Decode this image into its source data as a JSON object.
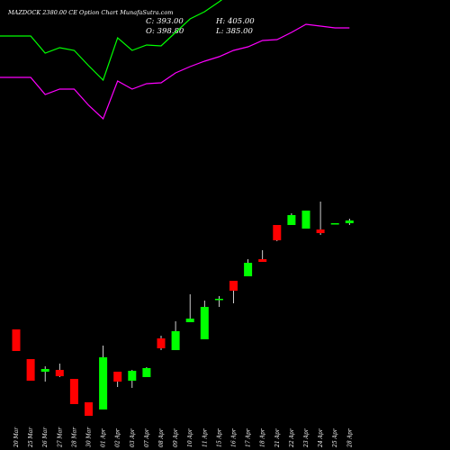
{
  "header": {
    "title": "MAZDOCK 2380.00  CE Option  Chart MunafaSutra.com",
    "close_text": "C: 393.00",
    "high_text": "H: 405.00",
    "open_text": "O: 398.80",
    "low_text": "L: 385.00"
  },
  "chart_data": {
    "type": "candlestick",
    "background": "#000000",
    "up_color": "#00ff00",
    "down_color": "#ff0000",
    "line_colors": [
      "#00ff00",
      "#ff00ff"
    ],
    "x": [
      "20 Mar",
      "25 Mar",
      "26 Mar",
      "27 Mar",
      "28 Mar",
      "30 Mar",
      "01 Apr",
      "02 Apr",
      "03 Apr",
      "07 Apr",
      "08 Apr",
      "09 Apr",
      "10 Apr",
      "11 Apr",
      "15 Apr",
      "16 Apr",
      "17 Apr",
      "18 Apr",
      "21 Apr",
      "22 Apr",
      "23 Apr",
      "24 Apr",
      "25 Apr",
      "28 Apr"
    ],
    "candles": [
      {
        "o": 134,
        "h": 134,
        "l": 110,
        "c": 110
      },
      {
        "o": 101,
        "h": 101,
        "l": 77,
        "c": 77
      },
      {
        "o": 87,
        "h": 93,
        "l": 76,
        "c": 90
      },
      {
        "o": 89,
        "h": 96,
        "l": 81,
        "c": 82
      },
      {
        "o": 79,
        "h": 79,
        "l": 51,
        "c": 51
      },
      {
        "o": 53,
        "h": 53,
        "l": 38,
        "c": 38
      },
      {
        "o": 45,
        "h": 116,
        "l": 45,
        "c": 103
      },
      {
        "o": 87,
        "h": 87,
        "l": 70,
        "c": 76
      },
      {
        "o": 77,
        "h": 89,
        "l": 69,
        "c": 88
      },
      {
        "o": 81,
        "h": 92,
        "l": 81,
        "c": 91
      },
      {
        "o": 124,
        "h": 127,
        "l": 111,
        "c": 113
      },
      {
        "o": 111,
        "h": 143,
        "l": 111,
        "c": 132
      },
      {
        "o": 142,
        "h": 173,
        "l": 142,
        "c": 146
      },
      {
        "o": 123,
        "h": 166,
        "l": 123,
        "c": 159
      },
      {
        "o": 168,
        "h": 171,
        "l": 159,
        "c": 168
      },
      {
        "o": 188,
        "h": 188,
        "l": 163,
        "c": 177
      },
      {
        "o": 193,
        "h": 212,
        "l": 193,
        "c": 208
      },
      {
        "o": 212,
        "h": 222,
        "l": 209,
        "c": 209
      },
      {
        "o": 250,
        "h": 250,
        "l": 232,
        "c": 233
      },
      {
        "o": 250,
        "h": 263,
        "l": 250,
        "c": 261
      },
      {
        "o": 246,
        "h": 266,
        "l": 246,
        "c": 266
      },
      {
        "o": 245,
        "h": 276,
        "l": 239,
        "c": 241
      },
      {
        "o": 251,
        "h": 252,
        "l": 251,
        "c": 252
      },
      {
        "o": 252,
        "h": 257,
        "l": 250,
        "c": 255
      }
    ],
    "series": [
      {
        "values": [
          460,
          460,
          441,
          447,
          444,
          427,
          411,
          458,
          444,
          450,
          449,
          464,
          479,
          487,
          498,
          510,
          515,
          532,
          531,
          550,
          567,
          573,
          556,
          562
        ]
      },
      {
        "values": [
          414,
          414,
          395,
          401,
          401,
          383,
          368,
          410,
          401,
          407,
          408,
          419,
          426,
          432,
          437,
          444,
          448,
          455,
          456,
          464,
          473,
          471,
          469,
          469
        ]
      }
    ]
  }
}
